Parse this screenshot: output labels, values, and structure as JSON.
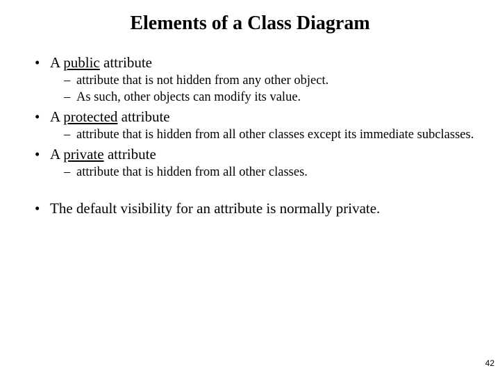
{
  "title": "Elements of a Class Diagram",
  "items": [
    {
      "prefix": "A ",
      "keyword": "public",
      "suffix": " attribute",
      "sub": [
        "attribute that is not hidden from any other object.",
        "As such, other objects can modify its value."
      ]
    },
    {
      "prefix": "A ",
      "keyword": "protected",
      "suffix": " attribute",
      "sub": [
        "attribute that is hidden from all other classes except its immediate subclasses."
      ]
    },
    {
      "prefix": "A ",
      "keyword": "private",
      "suffix": " attribute",
      "sub": [
        "attribute that is hidden from all other classes."
      ]
    }
  ],
  "footer_bullet": "The default visibility for an attribute is normally private.",
  "page_number": "42",
  "colors": {
    "background": "#ffffff",
    "text": "#000000"
  },
  "fontsize": {
    "title": 28,
    "level1": 21,
    "level2": 18.5,
    "pagenum": 12
  }
}
